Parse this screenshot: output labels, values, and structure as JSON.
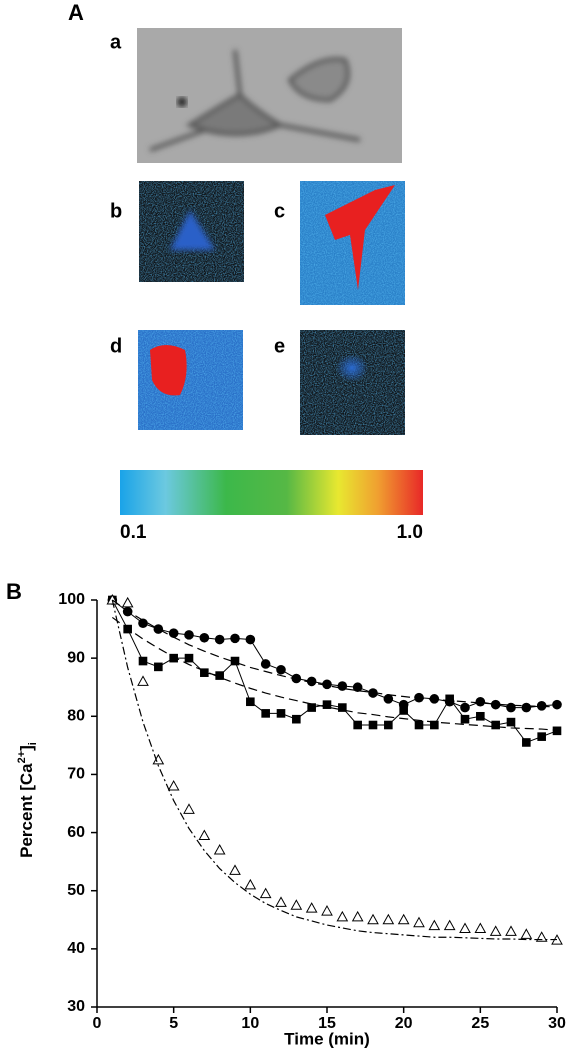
{
  "panel_a": {
    "label": "A",
    "images": [
      "a",
      "b",
      "c",
      "d",
      "e"
    ],
    "colorbar": {
      "min_label": "0.1",
      "max_label": "1.0"
    }
  },
  "chart_data": {
    "type": "line",
    "label": "B",
    "xlabel": "Time (min)",
    "ylabel": [
      "Percent [Ca",
      "2+",
      "]",
      "i"
    ],
    "x": [
      1,
      2,
      3,
      4,
      5,
      6,
      7,
      8,
      9,
      10,
      11,
      12,
      13,
      14,
      15,
      16,
      17,
      18,
      19,
      20,
      21,
      22,
      23,
      24,
      25,
      26,
      27,
      28,
      29,
      30
    ],
    "xlim": [
      0,
      30
    ],
    "xticks": [
      0,
      5,
      10,
      15,
      20,
      25,
      30
    ],
    "ylim": [
      30,
      100
    ],
    "yticks": [
      30,
      40,
      50,
      60,
      70,
      80,
      90,
      100
    ],
    "series": [
      {
        "marker": "circle",
        "color": "#000000",
        "connect": true,
        "values": [
          100,
          98,
          96,
          95,
          94.3,
          94,
          93.5,
          93.2,
          93.4,
          93.2,
          89,
          88,
          86.5,
          86,
          85.5,
          85.2,
          85,
          84,
          83,
          82,
          83.2,
          83,
          82.5,
          81.5,
          82.5,
          82,
          81.5,
          81.5,
          81.8,
          82
        ]
      },
      {
        "marker": "square",
        "color": "#000000",
        "connect": true,
        "values": [
          100,
          95,
          89.5,
          88.5,
          90,
          90,
          87.5,
          87,
          89.5,
          82.5,
          80.5,
          80.5,
          79.5,
          81.5,
          82,
          81.5,
          78.5,
          78.5,
          78.5,
          81,
          78.5,
          78.5,
          83,
          79.5,
          80,
          78.5,
          79,
          75.5,
          76.5,
          77.5
        ]
      },
      {
        "marker": "triangle",
        "color": "#000000",
        "connect": false,
        "values": [
          100,
          99.5,
          86,
          72.5,
          68,
          64,
          59.5,
          57,
          53.5,
          51,
          49.5,
          48,
          47.5,
          47,
          46.5,
          45.5,
          45.5,
          45,
          45,
          45,
          44.5,
          44,
          44,
          43.5,
          43.5,
          43,
          43,
          42.5,
          42,
          41.5
        ]
      },
      {
        "marker": "none",
        "color": "#000000",
        "dash": "9 5",
        "values": [
          100,
          98.1,
          96.5,
          95,
          93.6,
          92.3,
          91.2,
          90.2,
          89.3,
          88.4,
          87.7,
          87,
          86.4,
          85.8,
          85.3,
          84.8,
          84.4,
          84.1,
          83.7,
          83.4,
          83.1,
          82.9,
          82.7,
          82.5,
          82.3,
          82.1,
          81.9,
          81.8,
          81.7,
          81.6
        ]
      },
      {
        "marker": "none",
        "color": "#000000",
        "dash": "9 5",
        "values": [
          97,
          95.1,
          93.3,
          91.7,
          90.2,
          88.9,
          87.8,
          86.7,
          85.7,
          84.8,
          84,
          83.3,
          82.7,
          82.1,
          81.6,
          81.1,
          80.6,
          80.3,
          79.9,
          79.6,
          79.3,
          79,
          78.8,
          78.6,
          78.4,
          78.2,
          78,
          77.9,
          77.8,
          77.6
        ]
      },
      {
        "marker": "none",
        "color": "#000000",
        "dash": "8 3 2 3",
        "values": [
          100,
          88.4,
          79,
          71.5,
          65.5,
          60.7,
          56.9,
          53.8,
          51.4,
          49.4,
          47.8,
          46.6,
          45.5,
          44.8,
          44.1,
          43.6,
          43.1,
          42.8,
          42.6,
          42.4,
          42.2,
          42,
          42,
          41.9,
          41.8,
          41.7,
          41.7,
          41.6,
          41.6,
          41.6
        ]
      }
    ]
  }
}
